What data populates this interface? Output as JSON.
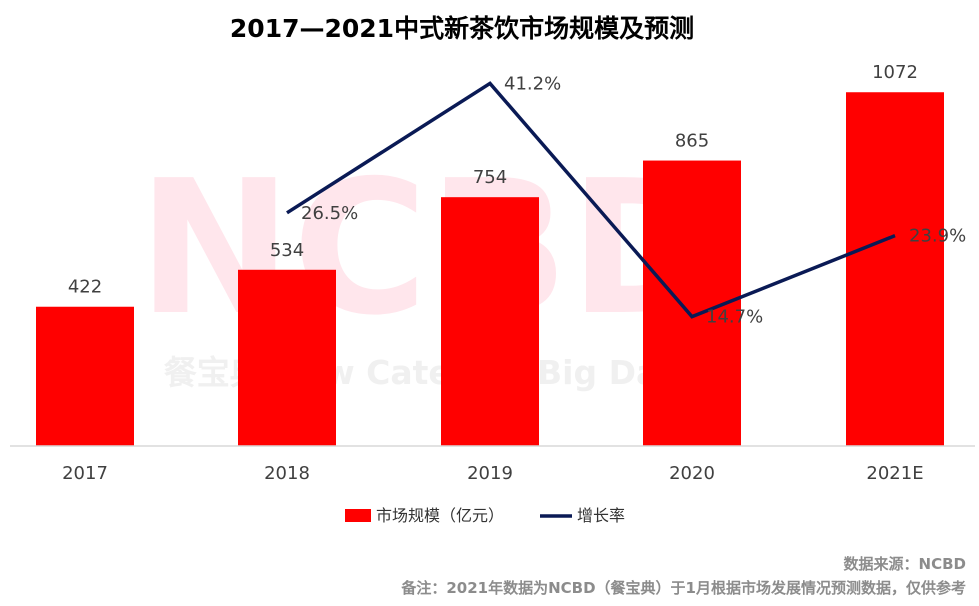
{
  "chart_data": {
    "type": "bar",
    "title": "2017—2021中式新茶饮市场规模及预测",
    "categories": [
      "2017",
      "2018",
      "2019",
      "2020",
      "2021E"
    ],
    "series": [
      {
        "name": "市场规模（亿元）",
        "kind": "bar",
        "color": "#FF0000",
        "values": [
          422,
          534,
          754,
          865,
          1072
        ],
        "labels": [
          "422",
          "534",
          "754",
          "865",
          "1072"
        ]
      },
      {
        "name": "增长率",
        "kind": "line",
        "color": "#0A1A55",
        "values": [
          null,
          26.5,
          41.2,
          14.7,
          23.9
        ],
        "labels": [
          "",
          "26.5%",
          "41.2%",
          "14.7%",
          "23.9%"
        ]
      }
    ],
    "ylim": [
      0,
      1200
    ],
    "y2lim": [
      0,
      45
    ],
    "grid": false,
    "legend": "bottom",
    "xlabel": "",
    "ylabel": ""
  },
  "watermark": {
    "text": "NCBD",
    "subtext": "餐宝典 New Catering Big Data"
  },
  "source": "数据来源：NCBD",
  "note": "备注：2021年数据为NCBD（餐宝典）于1月根据市场发展情况预测数据，仅供参考"
}
